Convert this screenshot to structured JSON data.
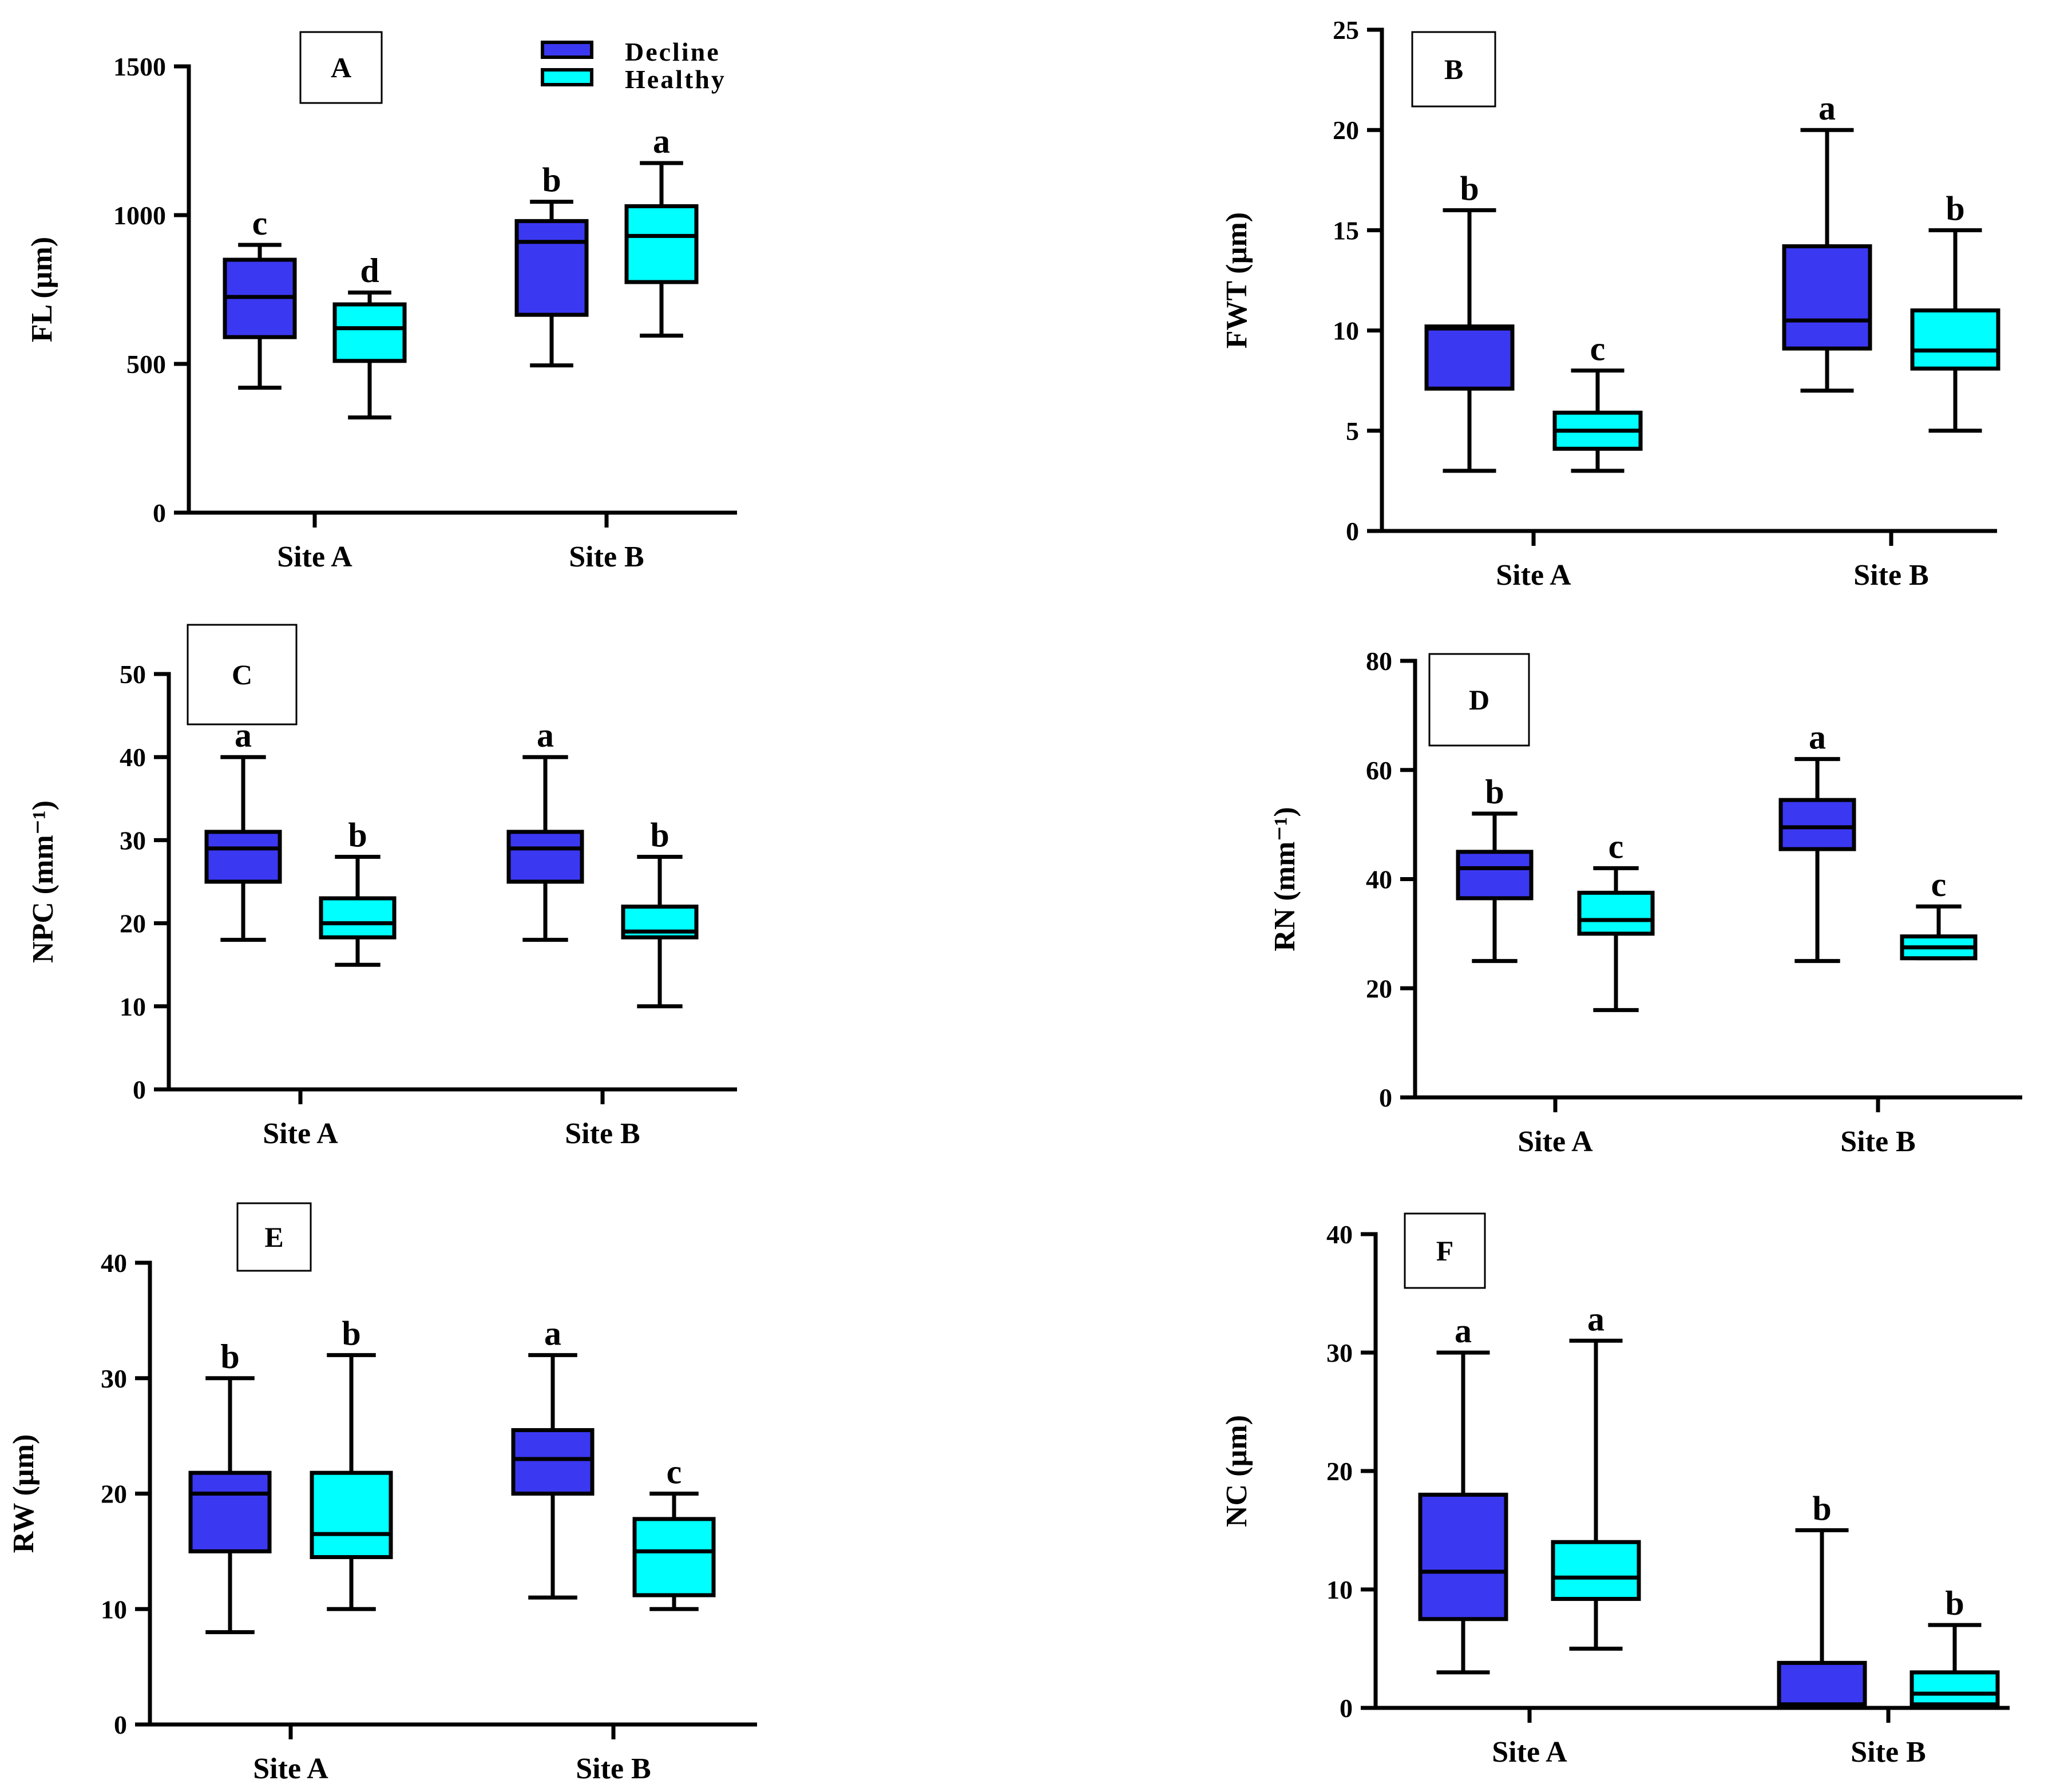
{
  "colors": {
    "decline": "#3b38f2",
    "healthy": "#00ffff",
    "stroke": "#000000"
  },
  "legend": {
    "decline_label": "Decline",
    "healthy_label": "Healthy"
  },
  "chart_data": [
    {
      "id": "A",
      "type": "box",
      "panel_label": "A",
      "ylabel": "FL (µm)",
      "ylim": [
        0,
        1500
      ],
      "yticks": [
        0,
        500,
        1000,
        1500
      ],
      "categories": [
        "Site A",
        "Site B"
      ],
      "series": [
        {
          "name": "Decline",
          "boxes": [
            {
              "min": 420,
              "q1": 590,
              "median": 725,
              "q3": 850,
              "max": 900,
              "letter": "c"
            },
            {
              "min": 495,
              "q1": 665,
              "median": 910,
              "q3": 980,
              "max": 1045,
              "letter": "b"
            }
          ]
        },
        {
          "name": "Healthy",
          "boxes": [
            {
              "min": 320,
              "q1": 510,
              "median": 620,
              "q3": 700,
              "max": 740,
              "letter": "d"
            },
            {
              "min": 595,
              "q1": 775,
              "median": 930,
              "q3": 1030,
              "max": 1175,
              "letter": "a"
            }
          ]
        }
      ]
    },
    {
      "id": "B",
      "type": "box",
      "panel_label": "B",
      "ylabel": "FWT (µm)",
      "ylim": [
        0,
        25
      ],
      "yticks": [
        0,
        5,
        10,
        15,
        20,
        25
      ],
      "categories": [
        "Site A",
        "Site B"
      ],
      "series": [
        {
          "name": "Decline",
          "boxes": [
            {
              "min": 3,
              "q1": 7.1,
              "median": 10.1,
              "q3": 10.2,
              "max": 16,
              "letter": "b"
            },
            {
              "min": 7,
              "q1": 9.1,
              "median": 10.5,
              "q3": 14.2,
              "max": 20,
              "letter": "a"
            }
          ]
        },
        {
          "name": "Healthy",
          "boxes": [
            {
              "min": 3,
              "q1": 4.1,
              "median": 5,
              "q3": 5.9,
              "max": 8,
              "letter": "c"
            },
            {
              "min": 5,
              "q1": 8.1,
              "median": 9,
              "q3": 11,
              "max": 15,
              "letter": "b"
            }
          ]
        }
      ]
    },
    {
      "id": "C",
      "type": "box",
      "panel_label": "C",
      "ylabel": "NPC (mm⁻¹)",
      "ylim": [
        0,
        50
      ],
      "yticks": [
        0,
        10,
        20,
        30,
        40,
        50
      ],
      "categories": [
        "Site A",
        "Site B"
      ],
      "series": [
        {
          "name": "Decline",
          "boxes": [
            {
              "min": 18,
              "q1": 25,
              "median": 29,
              "q3": 31,
              "max": 40,
              "letter": "a"
            },
            {
              "min": 18,
              "q1": 25,
              "median": 29,
              "q3": 31,
              "max": 40,
              "letter": "a"
            }
          ]
        },
        {
          "name": "Healthy",
          "boxes": [
            {
              "min": 15,
              "q1": 18.3,
              "median": 20,
              "q3": 23,
              "max": 28,
              "letter": "b"
            },
            {
              "min": 10,
              "q1": 18.3,
              "median": 19,
              "q3": 22,
              "max": 28,
              "letter": "b"
            }
          ]
        }
      ]
    },
    {
      "id": "D",
      "type": "box",
      "panel_label": "D",
      "ylabel": "RN (mm⁻¹)",
      "ylim": [
        0,
        80
      ],
      "yticks": [
        0,
        20,
        40,
        60,
        80
      ],
      "categories": [
        "Site A",
        "Site B"
      ],
      "series": [
        {
          "name": "Decline",
          "boxes": [
            {
              "min": 25,
              "q1": 36.5,
              "median": 42,
              "q3": 45,
              "max": 52,
              "letter": "b"
            },
            {
              "min": 25,
              "q1": 45.5,
              "median": 49.5,
              "q3": 54.5,
              "max": 62,
              "letter": "a"
            }
          ]
        },
        {
          "name": "Healthy",
          "boxes": [
            {
              "min": 16,
              "q1": 30,
              "median": 32.5,
              "q3": 37.5,
              "max": 42,
              "letter": "c"
            },
            {
              "min": 25.5,
              "q1": 25.5,
              "median": 27.5,
              "q3": 29.5,
              "max": 35,
              "letter": "c"
            }
          ]
        }
      ]
    },
    {
      "id": "E",
      "type": "box",
      "panel_label": "E",
      "ylabel": "RW (µm)",
      "ylim": [
        0,
        40
      ],
      "yticks": [
        0,
        10,
        20,
        30,
        40
      ],
      "categories": [
        "Site A",
        "Site B"
      ],
      "series": [
        {
          "name": "Decline",
          "boxes": [
            {
              "min": 8,
              "q1": 15,
              "median": 20,
              "q3": 21.8,
              "max": 30,
              "letter": "b"
            },
            {
              "min": 11,
              "q1": 20,
              "median": 23,
              "q3": 25.5,
              "max": 32,
              "letter": "a"
            }
          ]
        },
        {
          "name": "Healthy",
          "boxes": [
            {
              "min": 10,
              "q1": 14.5,
              "median": 16.5,
              "q3": 21.8,
              "max": 32,
              "letter": "b"
            },
            {
              "min": 10,
              "q1": 11.2,
              "median": 15,
              "q3": 17.8,
              "max": 20,
              "letter": "c"
            }
          ]
        }
      ]
    },
    {
      "id": "F",
      "type": "box",
      "panel_label": "F",
      "ylabel": "NC (µm)",
      "ylim": [
        0,
        40
      ],
      "yticks": [
        0,
        10,
        20,
        30,
        40
      ],
      "categories": [
        "Site A",
        "Site B"
      ],
      "series": [
        {
          "name": "Decline",
          "boxes": [
            {
              "min": 3,
              "q1": 7.5,
              "median": 11.5,
              "q3": 18,
              "max": 30,
              "letter": "a"
            },
            {
              "min": 0,
              "q1": 0,
              "median": 0.3,
              "q3": 3.8,
              "max": 15,
              "letter": "b"
            }
          ]
        },
        {
          "name": "Healthy",
          "boxes": [
            {
              "min": 5,
              "q1": 9.2,
              "median": 11,
              "q3": 14,
              "max": 31,
              "letter": "a"
            },
            {
              "min": 0,
              "q1": 0.3,
              "median": 1.2,
              "q3": 3,
              "max": 7,
              "letter": "b"
            }
          ]
        }
      ]
    }
  ]
}
